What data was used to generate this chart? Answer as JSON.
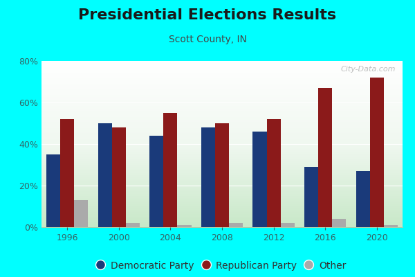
{
  "title": "Presidential Elections Results",
  "subtitle": "Scott County, IN",
  "years": [
    1996,
    2000,
    2004,
    2008,
    2012,
    2016,
    2020
  ],
  "democratic": [
    35,
    50,
    44,
    48,
    46,
    29,
    27
  ],
  "republican": [
    52,
    48,
    55,
    50,
    52,
    67,
    72
  ],
  "other": [
    13,
    2,
    1,
    2,
    2,
    4,
    1
  ],
  "dem_color": "#1a3a7a",
  "rep_color": "#8B1A1A",
  "other_color": "#aaaaaa",
  "outer_bg": "#00ffff",
  "plot_bg_top": "#ffffff",
  "plot_bg_bottom": "#c8e8c8",
  "tick_color": "#336666",
  "ylim": [
    0,
    80
  ],
  "yticks": [
    0,
    20,
    40,
    60,
    80
  ],
  "bar_width": 0.27,
  "title_fontsize": 16,
  "subtitle_fontsize": 10,
  "watermark": "City-Data.com",
  "legend_labels": [
    "Democratic Party",
    "Republican Party",
    "Other"
  ]
}
